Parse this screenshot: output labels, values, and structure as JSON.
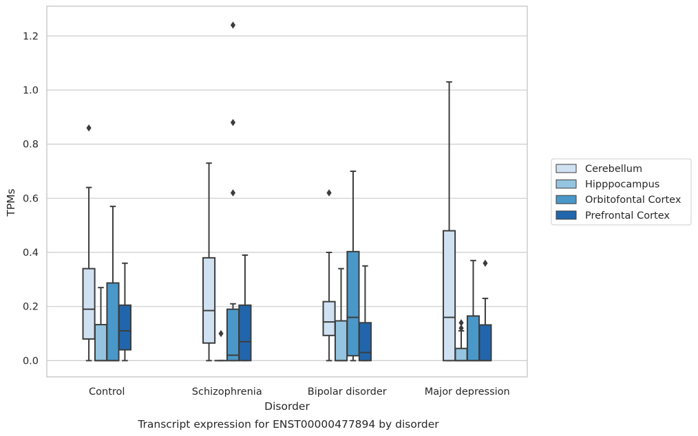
{
  "chart_data": {
    "type": "box",
    "title": "",
    "caption": "Transcript expression for ENST00000477894 by disorder",
    "xlabel": "Disorder",
    "ylabel": "TPMs",
    "ylim": [
      -0.06,
      1.31
    ],
    "yticks": [
      0.0,
      0.2,
      0.4,
      0.6,
      0.8,
      1.0,
      1.2
    ],
    "ytick_labels": [
      "0.0",
      "0.2",
      "0.4",
      "0.6",
      "0.8",
      "1.0",
      "1.2"
    ],
    "grid": "horizontal",
    "legend_position": "right, outside",
    "categories": [
      "Control",
      "Schizophrenia",
      "Bipolar disorder",
      "Major depression"
    ],
    "series": [
      {
        "name": "Cerebellum",
        "color": "#d0e1f2",
        "boxes": [
          {
            "whislo": 0.0,
            "q1": 0.08,
            "med": 0.19,
            "q3": 0.34,
            "whishi": 0.64,
            "fliers": [
              0.86
            ]
          },
          {
            "whislo": 0.0,
            "q1": 0.065,
            "med": 0.185,
            "q3": 0.38,
            "whishi": 0.73,
            "fliers": []
          },
          {
            "whislo": 0.0,
            "q1": 0.093,
            "med": 0.143,
            "q3": 0.218,
            "whishi": 0.4,
            "fliers": [
              0.62
            ]
          },
          {
            "whislo": 0.0,
            "q1": 0.0,
            "med": 0.16,
            "q3": 0.48,
            "whishi": 1.03,
            "fliers": []
          }
        ]
      },
      {
        "name": "Hipppocampus",
        "color": "#94c4df",
        "boxes": [
          {
            "whislo": 0.0,
            "q1": 0.0,
            "med": 0.0,
            "q3": 0.133,
            "whishi": 0.27,
            "fliers": []
          },
          {
            "whislo": 0.0,
            "q1": 0.0,
            "med": 0.0,
            "q3": 0.0,
            "whishi": 0.0,
            "fliers": [
              0.1
            ]
          },
          {
            "whislo": 0.0,
            "q1": 0.0,
            "med": 0.0,
            "q3": 0.147,
            "whishi": 0.34,
            "fliers": []
          },
          {
            "whislo": 0.0,
            "q1": 0.0,
            "med": 0.0,
            "q3": 0.045,
            "whishi": 0.11,
            "fliers": [
              0.12,
              0.14
            ]
          }
        ]
      },
      {
        "name": "Orbitofontal Cortex",
        "color": "#4a98c9",
        "boxes": [
          {
            "whislo": 0.0,
            "q1": 0.0,
            "med": 0.0,
            "q3": 0.287,
            "whishi": 0.57,
            "fliers": []
          },
          {
            "whislo": 0.0,
            "q1": 0.0,
            "med": 0.02,
            "q3": 0.19,
            "whishi": 0.21,
            "fliers": [
              0.62,
              0.88,
              1.24
            ]
          },
          {
            "whislo": 0.0,
            "q1": 0.018,
            "med": 0.16,
            "q3": 0.403,
            "whishi": 0.7,
            "fliers": []
          },
          {
            "whislo": 0.0,
            "q1": 0.0,
            "med": 0.0,
            "q3": 0.165,
            "whishi": 0.37,
            "fliers": []
          }
        ]
      },
      {
        "name": "Prefrontal Cortex",
        "color": "#2166ac",
        "boxes": [
          {
            "whislo": 0.0,
            "q1": 0.04,
            "med": 0.11,
            "q3": 0.205,
            "whishi": 0.36,
            "fliers": []
          },
          {
            "whislo": 0.0,
            "q1": 0.0,
            "med": 0.07,
            "q3": 0.205,
            "whishi": 0.39,
            "fliers": []
          },
          {
            "whislo": 0.0,
            "q1": 0.0,
            "med": 0.03,
            "q3": 0.14,
            "whishi": 0.35,
            "fliers": []
          },
          {
            "whislo": 0.0,
            "q1": 0.0,
            "med": 0.0,
            "q3": 0.132,
            "whishi": 0.23,
            "fliers": [
              0.36
            ]
          }
        ]
      }
    ]
  }
}
